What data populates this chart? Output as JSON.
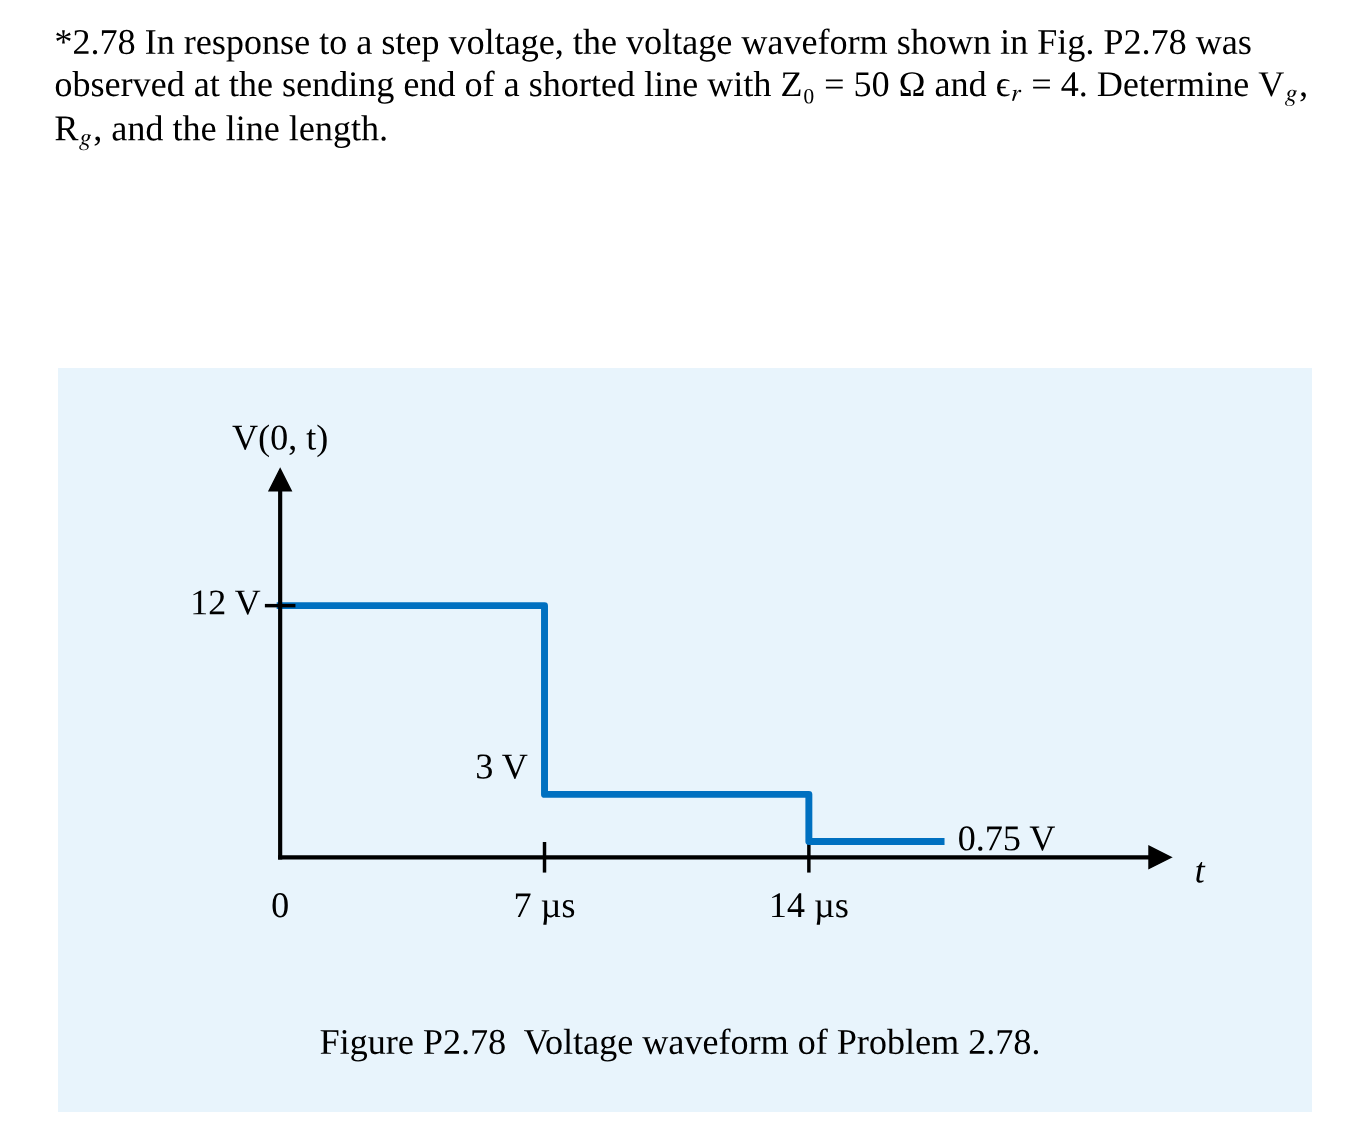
{
  "chart_data": {
    "type": "step",
    "title": "*2.78 In response to a step voltage, the voltage waveform shown in Fig. P2.78 was observed at the sending end of a shorted line with Z₀ = 50 Ω and ϵ$_{r}$ = 4. Determine V$_{g}$, R$_{g}$, and the line length.",
    "xlabel": "t",
    "ylabel": "V(0, t)",
    "x": [
      0,
      7,
      14,
      17.5
    ],
    "series": [
      {
        "color": "#0070c0",
        "values": [
          12,
          3,
          0.75,
          0.75
        ],
        "value_labels": [
          "12 V",
          "3 V",
          null,
          "0.75 V"
        ]
      }
    ],
    "xlim": [
      0,
      23.3
    ],
    "xticks": [
      0,
      {
        "value": 7,
        "label": "7 µs"
      },
      {
        "value": 14,
        "label": "14 µs"
      }
    ],
    "annotations": [
      "Figure P2.78  Voltage waveform of Problem 2.78."
    ]
  }
}
